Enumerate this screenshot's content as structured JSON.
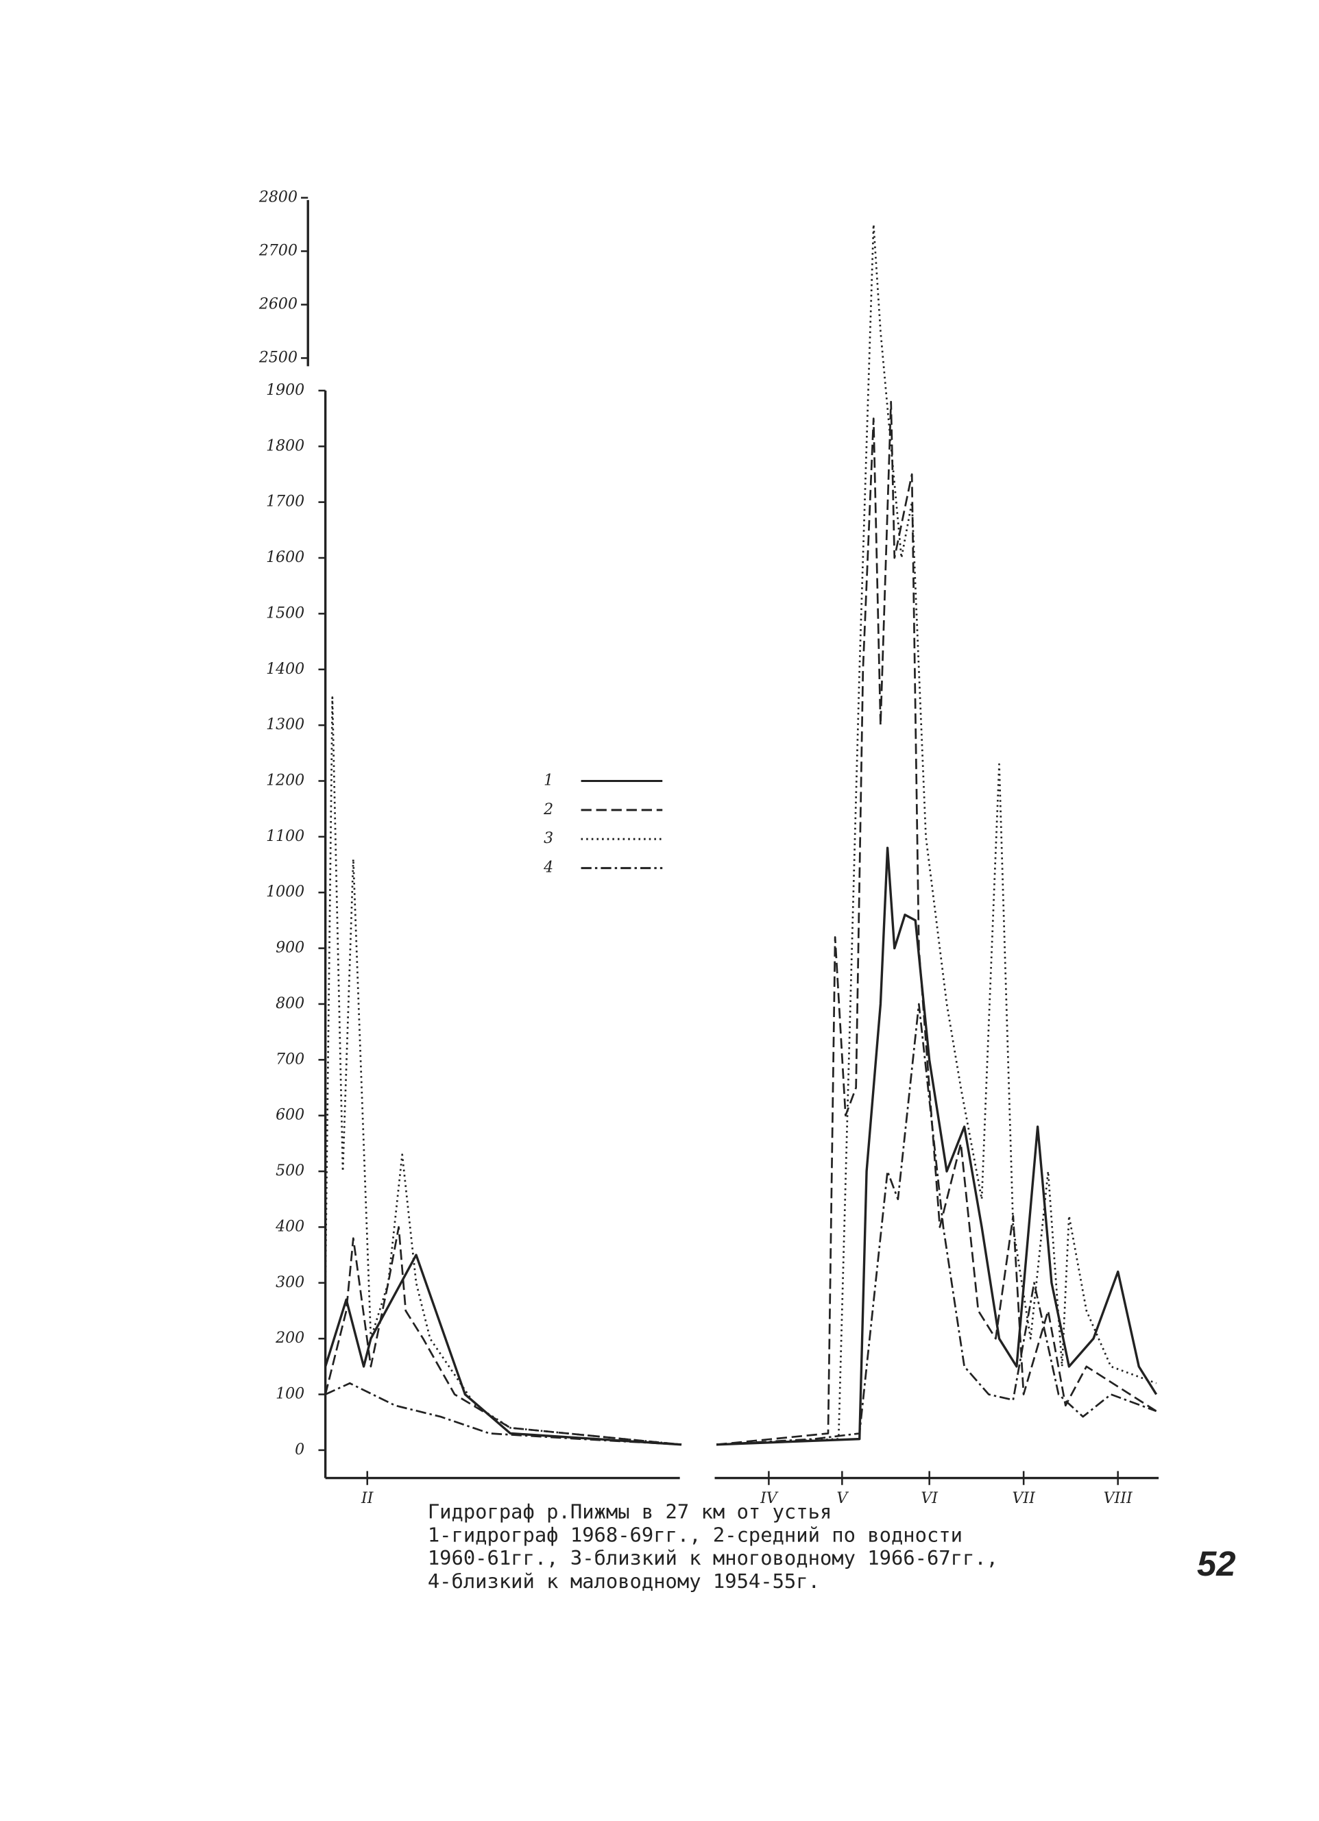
{
  "chart_data": {
    "type": "line",
    "caption": [
      "Гидрограф р.Пижмы в 27 км от устья",
      "1-гидрограф 1968-69гг., 2-средний по водности",
      "1960-61гг., 3-близкий к многоводному 1966-67гг.,",
      "4-близкий к маловодному 1954-55г."
    ],
    "page_number": "52",
    "xlim": [
      0,
      238
    ],
    "xticks": [
      {
        "value": 12,
        "label": "II"
      },
      {
        "value": 127,
        "label": "IV"
      },
      {
        "value": 148,
        "label": "V"
      },
      {
        "value": 173,
        "label": "VI"
      },
      {
        "value": 200,
        "label": "VII"
      },
      {
        "value": 227,
        "label": "VIII"
      }
    ],
    "ylim": [
      0,
      1900
    ],
    "yticks": [
      0,
      100,
      200,
      300,
      400,
      500,
      600,
      700,
      800,
      900,
      1000,
      1100,
      1200,
      1300,
      1400,
      1500,
      1600,
      1700,
      1800,
      1900
    ],
    "y2lim": [
      2500,
      2800
    ],
    "y2ticks": [
      2500,
      2600,
      2700,
      2800
    ],
    "color": "#222222",
    "series": [
      {
        "name": "1",
        "linestyle": "solid",
        "x": [
          0,
          6,
          11,
          13,
          26,
          40,
          53,
          102,
          107,
          112,
          153,
          155,
          159,
          161,
          163,
          166,
          169,
          173,
          178,
          183,
          188,
          193,
          198,
          204,
          208,
          213,
          220,
          227,
          233,
          238
        ],
        "values": [
          150,
          270,
          150,
          200,
          350,
          100,
          30,
          10,
          null,
          10,
          20,
          500,
          800,
          1080,
          900,
          960,
          950,
          700,
          500,
          580,
          400,
          200,
          150,
          580,
          300,
          150,
          200,
          320,
          150,
          100
        ]
      },
      {
        "name": "2",
        "linestyle": "dashed",
        "x": [
          0,
          6,
          8,
          13,
          18,
          21,
          23,
          28,
          37,
          53,
          102,
          107,
          112,
          144,
          146,
          149,
          152,
          154,
          157,
          159,
          162,
          163,
          168,
          170,
          173,
          176,
          182,
          187,
          192,
          197,
          200,
          207,
          212,
          218,
          238
        ],
        "values": [
          100,
          250,
          380,
          150,
          300,
          400,
          250,
          200,
          100,
          40,
          10,
          null,
          10,
          30,
          920,
          600,
          650,
          1400,
          1850,
          1300,
          1880,
          1600,
          1750,
          900,
          650,
          400,
          550,
          250,
          200,
          420,
          100,
          250,
          80,
          150,
          70
        ]
      },
      {
        "name": "3",
        "linestyle": "dotted",
        "x": [
          0,
          2,
          5,
          8,
          13,
          18,
          22,
          26,
          30,
          43,
          53,
          102,
          107,
          112,
          147,
          153,
          154,
          157,
          159,
          162,
          165,
          168,
          172,
          178,
          182,
          188,
          193,
          197,
          202,
          207,
          211,
          213,
          218,
          225,
          238
        ],
        "values": [
          300,
          1350,
          500,
          1060,
          200,
          300,
          530,
          300,
          200,
          80,
          40,
          10,
          null,
          10,
          20,
          1400,
          1600,
          2750,
          2550,
          1800,
          1600,
          1700,
          1100,
          800,
          650,
          450,
          1230,
          400,
          200,
          500,
          150,
          420,
          250,
          150,
          120
        ]
      },
      {
        "name": "4",
        "linestyle": "dashdot",
        "x": [
          0,
          7,
          20,
          33,
          47,
          73,
          102,
          107,
          112,
          140,
          153,
          161,
          164,
          170,
          177,
          183,
          190,
          197,
          203,
          210,
          217,
          225,
          238
        ],
        "values": [
          100,
          120,
          80,
          60,
          30,
          20,
          10,
          null,
          10,
          20,
          30,
          500,
          450,
          800,
          400,
          150,
          100,
          90,
          300,
          100,
          60,
          100,
          70
        ]
      }
    ]
  }
}
